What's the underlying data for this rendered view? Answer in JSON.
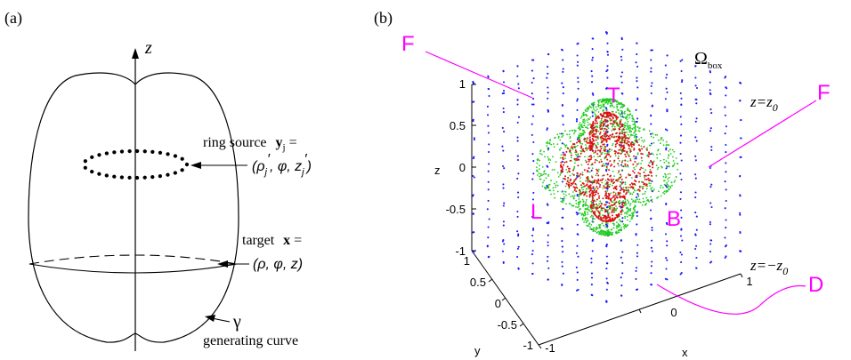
{
  "panel_a": {
    "label": "(a)",
    "axis_label": "z",
    "ring_source": {
      "line1_prefix": "ring source ",
      "line1_bold": "y",
      "line1_sub": "j",
      "line1_suffix": " =",
      "line2": "(ρ′j, φ, z′j)"
    },
    "target": {
      "line1_prefix": "target ",
      "line1_bold": "x",
      "line1_suffix": " =",
      "line2": "(ρ, φ, z)"
    },
    "gamma": "γ",
    "generating_curve": "generating curve"
  },
  "panel_b": {
    "label": "(b)",
    "omega": "Ω",
    "omega_sub": "box",
    "z_top": "z=z",
    "z_top_sub": "0",
    "z_bottom": "z=−z",
    "z_bottom_sub": "0",
    "face_labels": {
      "F_left": "F",
      "F_right": "F",
      "T": "T",
      "L": "L",
      "B": "B",
      "D": "D"
    },
    "axes": {
      "z_label": "z",
      "y_label": "y",
      "x_label": "x",
      "z_ticks": [
        "1",
        "0.5",
        "0",
        "-0.5",
        "-1"
      ],
      "y_ticks": [
        "1",
        "0.5",
        "0",
        "-0.5",
        "-1"
      ],
      "x_ticks": [
        "-1",
        "0",
        "1"
      ]
    },
    "colors": {
      "box_points": "#1a1aff",
      "outer_surface": "#22cc22",
      "inner_surface": "#dd1111",
      "face_labels": "#ff00ff"
    }
  }
}
